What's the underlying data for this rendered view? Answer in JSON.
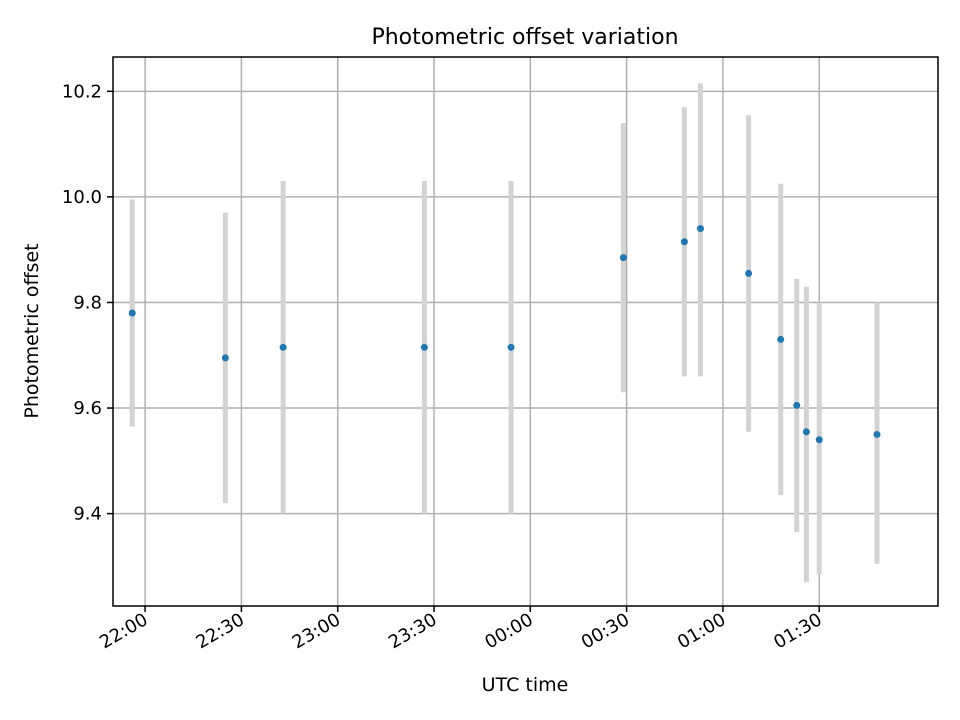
{
  "chart_data": {
    "type": "scatter",
    "title": "Photometric offset variation",
    "xlabel": "UTC time",
    "ylabel": "Photometric offset",
    "x_axis": {
      "kind": "time",
      "range": [
        "21:50",
        "02:07"
      ],
      "ticks": [
        "22:00",
        "22:30",
        "23:00",
        "23:30",
        "00:00",
        "00:30",
        "01:00",
        "01:30"
      ]
    },
    "y_axis": {
      "range": [
        9.225,
        10.265
      ],
      "ticks": [
        "9.4",
        "9.6",
        "9.8",
        "10.0",
        "10.2"
      ]
    },
    "grid": true,
    "series": [
      {
        "points": [
          {
            "x": "21:56",
            "y": 9.78,
            "ylow": 9.565,
            "yhigh": 9.995
          },
          {
            "x": "22:25",
            "y": 9.695,
            "ylow": 9.42,
            "yhigh": 9.97
          },
          {
            "x": "22:43",
            "y": 9.715,
            "ylow": 9.4,
            "yhigh": 10.03
          },
          {
            "x": "23:27",
            "y": 9.715,
            "ylow": 9.4,
            "yhigh": 10.03
          },
          {
            "x": "23:54",
            "y": 9.715,
            "ylow": 9.4,
            "yhigh": 10.03
          },
          {
            "x": "00:29",
            "y": 9.885,
            "ylow": 9.63,
            "yhigh": 10.14
          },
          {
            "x": "00:48",
            "y": 9.915,
            "ylow": 9.66,
            "yhigh": 10.17
          },
          {
            "x": "00:53",
            "y": 9.94,
            "ylow": 9.66,
            "yhigh": 10.215
          },
          {
            "x": "01:08",
            "y": 9.855,
            "ylow": 9.555,
            "yhigh": 10.155
          },
          {
            "x": "01:18",
            "y": 9.73,
            "ylow": 9.435,
            "yhigh": 10.025
          },
          {
            "x": "01:23",
            "y": 9.605,
            "ylow": 9.365,
            "yhigh": 9.845
          },
          {
            "x": "01:26",
            "y": 9.555,
            "ylow": 9.27,
            "yhigh": 9.83
          },
          {
            "x": "01:30",
            "y": 9.54,
            "ylow": 9.285,
            "yhigh": 9.8
          },
          {
            "x": "01:48",
            "y": 9.55,
            "ylow": 9.305,
            "yhigh": 9.8
          }
        ],
        "marker_color": "#1f77b4",
        "errorbar_color": "#d3d3d3"
      }
    ]
  }
}
